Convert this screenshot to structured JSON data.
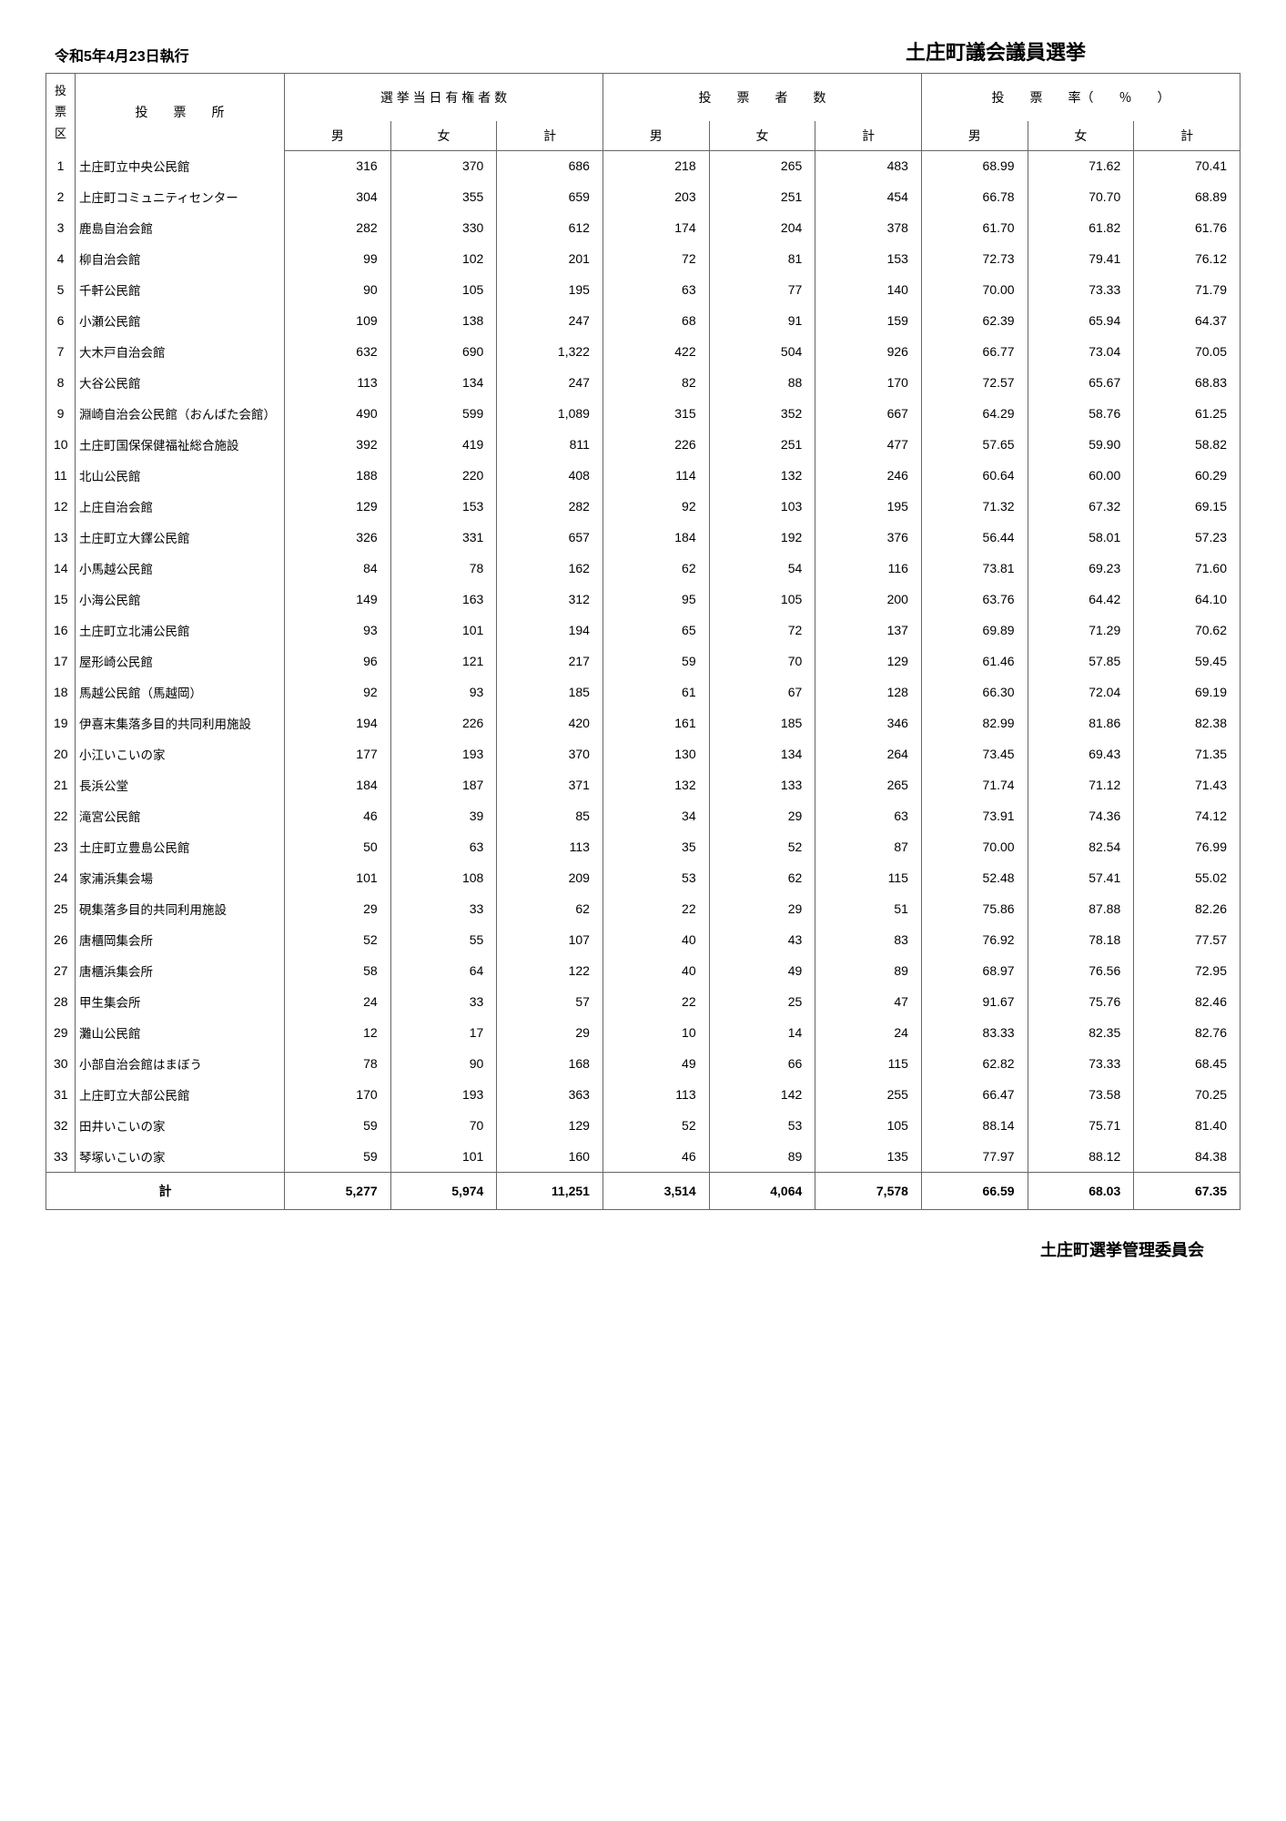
{
  "header": {
    "date": "令和5年4月23日執行",
    "title": "土庄町議会議員選挙"
  },
  "columns": {
    "district": "投票区",
    "place": "投　　票　　所",
    "eligible_group": "選 挙 当 日 有 権 者 数",
    "voters_group": "投　　票　　者　　数",
    "rate_group": "投　　票　　率（　　％　　）",
    "male": "男",
    "female": "女",
    "total": "計"
  },
  "rows": [
    {
      "n": "1",
      "place": "土庄町立中央公民館",
      "em": "316",
      "ef": "370",
      "et": "686",
      "vm": "218",
      "vf": "265",
      "vt": "483",
      "rm": "68.99",
      "rf": "71.62",
      "rt": "70.41"
    },
    {
      "n": "2",
      "place": "上庄町コミュニティセンター",
      "em": "304",
      "ef": "355",
      "et": "659",
      "vm": "203",
      "vf": "251",
      "vt": "454",
      "rm": "66.78",
      "rf": "70.70",
      "rt": "68.89"
    },
    {
      "n": "3",
      "place": "鹿島自治会館",
      "em": "282",
      "ef": "330",
      "et": "612",
      "vm": "174",
      "vf": "204",
      "vt": "378",
      "rm": "61.70",
      "rf": "61.82",
      "rt": "61.76"
    },
    {
      "n": "4",
      "place": "柳自治会館",
      "em": "99",
      "ef": "102",
      "et": "201",
      "vm": "72",
      "vf": "81",
      "vt": "153",
      "rm": "72.73",
      "rf": "79.41",
      "rt": "76.12"
    },
    {
      "n": "5",
      "place": "千軒公民館",
      "em": "90",
      "ef": "105",
      "et": "195",
      "vm": "63",
      "vf": "77",
      "vt": "140",
      "rm": "70.00",
      "rf": "73.33",
      "rt": "71.79"
    },
    {
      "n": "6",
      "place": "小瀬公民館",
      "em": "109",
      "ef": "138",
      "et": "247",
      "vm": "68",
      "vf": "91",
      "vt": "159",
      "rm": "62.39",
      "rf": "65.94",
      "rt": "64.37"
    },
    {
      "n": "7",
      "place": "大木戸自治会館",
      "em": "632",
      "ef": "690",
      "et": "1,322",
      "vm": "422",
      "vf": "504",
      "vt": "926",
      "rm": "66.77",
      "rf": "73.04",
      "rt": "70.05"
    },
    {
      "n": "8",
      "place": "大谷公民館",
      "em": "113",
      "ef": "134",
      "et": "247",
      "vm": "82",
      "vf": "88",
      "vt": "170",
      "rm": "72.57",
      "rf": "65.67",
      "rt": "68.83"
    },
    {
      "n": "9",
      "place": "淵崎自治会公民館（おんばた会館）",
      "em": "490",
      "ef": "599",
      "et": "1,089",
      "vm": "315",
      "vf": "352",
      "vt": "667",
      "rm": "64.29",
      "rf": "58.76",
      "rt": "61.25"
    },
    {
      "n": "10",
      "place": "土庄町国保保健福祉総合施設",
      "em": "392",
      "ef": "419",
      "et": "811",
      "vm": "226",
      "vf": "251",
      "vt": "477",
      "rm": "57.65",
      "rf": "59.90",
      "rt": "58.82"
    },
    {
      "n": "11",
      "place": "北山公民館",
      "em": "188",
      "ef": "220",
      "et": "408",
      "vm": "114",
      "vf": "132",
      "vt": "246",
      "rm": "60.64",
      "rf": "60.00",
      "rt": "60.29"
    },
    {
      "n": "12",
      "place": "上庄自治会館",
      "em": "129",
      "ef": "153",
      "et": "282",
      "vm": "92",
      "vf": "103",
      "vt": "195",
      "rm": "71.32",
      "rf": "67.32",
      "rt": "69.15"
    },
    {
      "n": "13",
      "place": "土庄町立大鐸公民館",
      "em": "326",
      "ef": "331",
      "et": "657",
      "vm": "184",
      "vf": "192",
      "vt": "376",
      "rm": "56.44",
      "rf": "58.01",
      "rt": "57.23"
    },
    {
      "n": "14",
      "place": "小馬越公民館",
      "em": "84",
      "ef": "78",
      "et": "162",
      "vm": "62",
      "vf": "54",
      "vt": "116",
      "rm": "73.81",
      "rf": "69.23",
      "rt": "71.60"
    },
    {
      "n": "15",
      "place": "小海公民館",
      "em": "149",
      "ef": "163",
      "et": "312",
      "vm": "95",
      "vf": "105",
      "vt": "200",
      "rm": "63.76",
      "rf": "64.42",
      "rt": "64.10"
    },
    {
      "n": "16",
      "place": "土庄町立北浦公民館",
      "em": "93",
      "ef": "101",
      "et": "194",
      "vm": "65",
      "vf": "72",
      "vt": "137",
      "rm": "69.89",
      "rf": "71.29",
      "rt": "70.62"
    },
    {
      "n": "17",
      "place": "屋形崎公民館",
      "em": "96",
      "ef": "121",
      "et": "217",
      "vm": "59",
      "vf": "70",
      "vt": "129",
      "rm": "61.46",
      "rf": "57.85",
      "rt": "59.45"
    },
    {
      "n": "18",
      "place": "馬越公民館（馬越岡）",
      "em": "92",
      "ef": "93",
      "et": "185",
      "vm": "61",
      "vf": "67",
      "vt": "128",
      "rm": "66.30",
      "rf": "72.04",
      "rt": "69.19"
    },
    {
      "n": "19",
      "place": "伊喜末集落多目的共同利用施設",
      "em": "194",
      "ef": "226",
      "et": "420",
      "vm": "161",
      "vf": "185",
      "vt": "346",
      "rm": "82.99",
      "rf": "81.86",
      "rt": "82.38"
    },
    {
      "n": "20",
      "place": "小江いこいの家",
      "em": "177",
      "ef": "193",
      "et": "370",
      "vm": "130",
      "vf": "134",
      "vt": "264",
      "rm": "73.45",
      "rf": "69.43",
      "rt": "71.35"
    },
    {
      "n": "21",
      "place": "長浜公堂",
      "em": "184",
      "ef": "187",
      "et": "371",
      "vm": "132",
      "vf": "133",
      "vt": "265",
      "rm": "71.74",
      "rf": "71.12",
      "rt": "71.43"
    },
    {
      "n": "22",
      "place": "滝宮公民館",
      "em": "46",
      "ef": "39",
      "et": "85",
      "vm": "34",
      "vf": "29",
      "vt": "63",
      "rm": "73.91",
      "rf": "74.36",
      "rt": "74.12"
    },
    {
      "n": "23",
      "place": "土庄町立豊島公民館",
      "em": "50",
      "ef": "63",
      "et": "113",
      "vm": "35",
      "vf": "52",
      "vt": "87",
      "rm": "70.00",
      "rf": "82.54",
      "rt": "76.99"
    },
    {
      "n": "24",
      "place": "家浦浜集会場",
      "em": "101",
      "ef": "108",
      "et": "209",
      "vm": "53",
      "vf": "62",
      "vt": "115",
      "rm": "52.48",
      "rf": "57.41",
      "rt": "55.02"
    },
    {
      "n": "25",
      "place": "硯集落多目的共同利用施設",
      "em": "29",
      "ef": "33",
      "et": "62",
      "vm": "22",
      "vf": "29",
      "vt": "51",
      "rm": "75.86",
      "rf": "87.88",
      "rt": "82.26"
    },
    {
      "n": "26",
      "place": "唐櫃岡集会所",
      "em": "52",
      "ef": "55",
      "et": "107",
      "vm": "40",
      "vf": "43",
      "vt": "83",
      "rm": "76.92",
      "rf": "78.18",
      "rt": "77.57"
    },
    {
      "n": "27",
      "place": "唐櫃浜集会所",
      "em": "58",
      "ef": "64",
      "et": "122",
      "vm": "40",
      "vf": "49",
      "vt": "89",
      "rm": "68.97",
      "rf": "76.56",
      "rt": "72.95"
    },
    {
      "n": "28",
      "place": "甲生集会所",
      "em": "24",
      "ef": "33",
      "et": "57",
      "vm": "22",
      "vf": "25",
      "vt": "47",
      "rm": "91.67",
      "rf": "75.76",
      "rt": "82.46"
    },
    {
      "n": "29",
      "place": "灘山公民館",
      "em": "12",
      "ef": "17",
      "et": "29",
      "vm": "10",
      "vf": "14",
      "vt": "24",
      "rm": "83.33",
      "rf": "82.35",
      "rt": "82.76"
    },
    {
      "n": "30",
      "place": "小部自治会館はまぼう",
      "em": "78",
      "ef": "90",
      "et": "168",
      "vm": "49",
      "vf": "66",
      "vt": "115",
      "rm": "62.82",
      "rf": "73.33",
      "rt": "68.45"
    },
    {
      "n": "31",
      "place": "上庄町立大部公民館",
      "em": "170",
      "ef": "193",
      "et": "363",
      "vm": "113",
      "vf": "142",
      "vt": "255",
      "rm": "66.47",
      "rf": "73.58",
      "rt": "70.25"
    },
    {
      "n": "32",
      "place": "田井いこいの家",
      "em": "59",
      "ef": "70",
      "et": "129",
      "vm": "52",
      "vf": "53",
      "vt": "105",
      "rm": "88.14",
      "rf": "75.71",
      "rt": "81.40"
    },
    {
      "n": "33",
      "place": "琴塚いこいの家",
      "em": "59",
      "ef": "101",
      "et": "160",
      "vm": "46",
      "vf": "89",
      "vt": "135",
      "rm": "77.97",
      "rf": "88.12",
      "rt": "84.38"
    }
  ],
  "totals": {
    "label": "計",
    "em": "5,277",
    "ef": "5,974",
    "et": "11,251",
    "vm": "3,514",
    "vf": "4,064",
    "vt": "7,578",
    "rm": "66.59",
    "rf": "68.03",
    "rt": "67.35"
  },
  "footer": "土庄町選挙管理委員会"
}
